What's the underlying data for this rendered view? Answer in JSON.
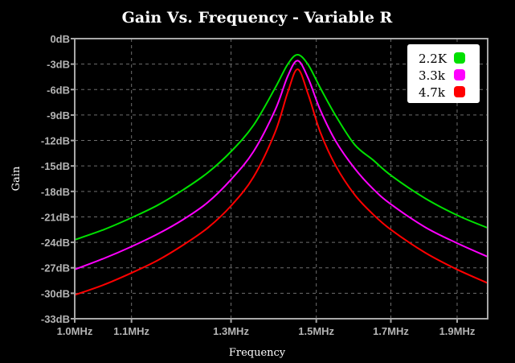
{
  "chart_data": {
    "type": "line",
    "title": "Gain Vs. Frequency - Variable R",
    "xlabel": "Frequency",
    "ylabel": "Gain",
    "x_scale": "log",
    "xlim": [
      1.0,
      2.0
    ],
    "ylim": [
      -33,
      0
    ],
    "x_unit": "MHz",
    "x_ticks": [
      1.0,
      1.1,
      1.3,
      1.5,
      1.7,
      1.9
    ],
    "x_tick_labels": [
      "1.0MHz",
      "1.1MHz",
      "1.3MHz",
      "1.5MHz",
      "1.7MHz",
      "1.9MHz"
    ],
    "y_ticks": [
      0,
      -3,
      -6,
      -9,
      -12,
      -15,
      -18,
      -21,
      -24,
      -27,
      -30,
      -33
    ],
    "y_tick_labels": [
      "0dB",
      "-3dB",
      "-6dB",
      "-9dB",
      "-12dB",
      "-15dB",
      "-18dB",
      "-21dB",
      "-24dB",
      "-27dB",
      "-30dB",
      "-33dB"
    ],
    "grid": true,
    "legend_position": "top-right",
    "x": [
      1.0,
      1.05,
      1.1,
      1.15,
      1.2,
      1.25,
      1.3,
      1.35,
      1.4,
      1.43,
      1.454,
      1.48,
      1.51,
      1.55,
      1.6,
      1.65,
      1.7,
      1.8,
      1.9,
      2.0
    ],
    "series": [
      {
        "name": "2.2K",
        "color": "#00e000",
        "values": [
          -23.7,
          -22.5,
          -21.1,
          -19.6,
          -17.8,
          -15.8,
          -13.3,
          -10.2,
          -5.8,
          -3.0,
          -1.9,
          -3.1,
          -5.8,
          -9.1,
          -12.5,
          -14.3,
          -16.1,
          -18.8,
          -20.8,
          -22.3
        ]
      },
      {
        "name": "3.3k",
        "color": "#ff00ff",
        "values": [
          -27.2,
          -25.9,
          -24.5,
          -23.0,
          -21.3,
          -19.3,
          -16.6,
          -13.3,
          -8.4,
          -4.4,
          -2.6,
          -4.7,
          -8.4,
          -12.1,
          -15.3,
          -17.7,
          -19.5,
          -22.2,
          -24.1,
          -25.7
        ]
      },
      {
        "name": "4.7k",
        "color": "#ff0000",
        "values": [
          -30.2,
          -29.0,
          -27.6,
          -26.1,
          -24.3,
          -22.3,
          -19.7,
          -16.3,
          -11.0,
          -6.3,
          -3.6,
          -6.6,
          -11.0,
          -15.0,
          -18.4,
          -20.7,
          -22.5,
          -25.2,
          -27.2,
          -28.8
        ]
      }
    ]
  }
}
